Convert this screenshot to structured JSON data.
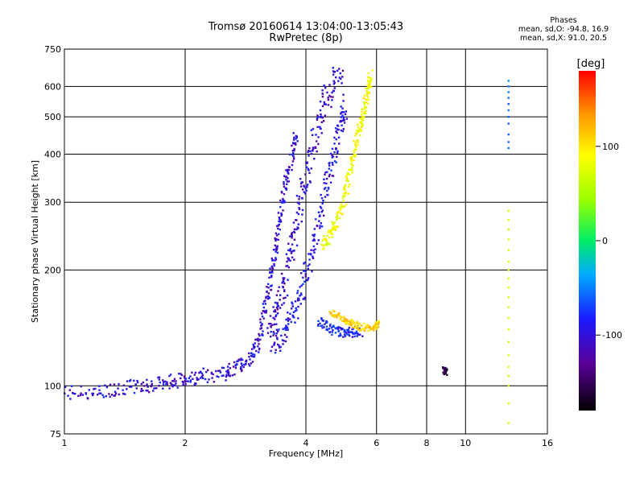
{
  "header": {
    "title_line1": "Tromsø 20160614 13:04:00-13:05:43",
    "title_line2": "RwPretec (8p)"
  },
  "phase_legend": {
    "heading": "Phases",
    "line1": "mean, sd,O: -94.8, 16.9",
    "line2": "mean, sd,X:  91.0, 20.5"
  },
  "colorbar": {
    "unit_label": "[deg]",
    "ticks": [
      "100",
      "0",
      "-100"
    ],
    "tick_values": [
      100,
      0,
      -100
    ],
    "range": [
      -180,
      180
    ]
  },
  "chart_data": {
    "type": "scatter",
    "title": "Tromsø 20160614 13:04:00-13:05:43",
    "subtitle": "RwPretec (8p)",
    "xlabel": "Frequency [MHz]",
    "ylabel": "Stationary phase Virtual Height [km]",
    "x_scale": "log",
    "y_scale": "log",
    "xlim": [
      1,
      16
    ],
    "ylim": [
      75,
      750
    ],
    "x_ticks": [
      "1",
      "2",
      "4",
      "6",
      "8",
      "10",
      "16"
    ],
    "x_tick_values": [
      1,
      2,
      4,
      6,
      8,
      10,
      16
    ],
    "y_ticks": [
      "75",
      "100",
      "200",
      "300",
      "400",
      "500",
      "600",
      "750"
    ],
    "y_tick_values": [
      75,
      100,
      200,
      300,
      400,
      500,
      600,
      750
    ],
    "grid": true,
    "color_scale": "phase [deg], -180 (black/purple) to 180 (red)",
    "series": [
      {
        "type": "trace",
        "phase": -110,
        "spread": 0.04,
        "points": [
          [
            1.0,
            96
          ],
          [
            1.2,
            96
          ],
          [
            1.4,
            99
          ],
          [
            1.6,
            100
          ],
          [
            1.8,
            102
          ],
          [
            2.0,
            104
          ],
          [
            2.2,
            106
          ],
          [
            2.5,
            108
          ],
          [
            2.7,
            112
          ],
          [
            2.9,
            118
          ],
          [
            3.05,
            130
          ],
          [
            3.15,
            155
          ],
          [
            3.25,
            185
          ],
          [
            3.35,
            220
          ],
          [
            3.45,
            270
          ],
          [
            3.55,
            330
          ],
          [
            3.7,
            400
          ],
          [
            3.8,
            450
          ]
        ]
      },
      {
        "type": "trace",
        "phase": -115,
        "spread": 0.07,
        "points": [
          [
            3.25,
            140
          ],
          [
            3.4,
            160
          ],
          [
            3.55,
            190
          ],
          [
            3.7,
            230
          ],
          [
            3.85,
            290
          ],
          [
            4.0,
            350
          ],
          [
            4.2,
            430
          ],
          [
            4.4,
            520
          ],
          [
            4.6,
            600
          ],
          [
            4.9,
            650
          ]
        ]
      },
      {
        "type": "trace",
        "phase": -105,
        "spread": 0.06,
        "points": [
          [
            3.3,
            125
          ],
          [
            3.5,
            135
          ],
          [
            3.7,
            150
          ],
          [
            3.9,
            175
          ],
          [
            4.1,
            210
          ],
          [
            4.3,
            260
          ],
          [
            4.5,
            330
          ],
          [
            4.7,
            400
          ],
          [
            4.9,
            470
          ],
          [
            5.0,
            540
          ]
        ]
      },
      {
        "type": "trace",
        "phase": -95,
        "spread": 0.03,
        "points": [
          [
            4.3,
            148
          ],
          [
            4.6,
            140
          ],
          [
            4.9,
            138
          ],
          [
            5.2,
            138
          ],
          [
            5.5,
            139
          ]
        ]
      },
      {
        "type": "trace",
        "phase": 85,
        "spread": 0.04,
        "points": [
          [
            4.4,
            230
          ],
          [
            4.6,
            245
          ],
          [
            4.8,
            270
          ],
          [
            5.0,
            310
          ],
          [
            5.15,
            360
          ],
          [
            5.3,
            420
          ],
          [
            5.45,
            470
          ],
          [
            5.6,
            520
          ],
          [
            5.75,
            600
          ],
          [
            5.8,
            640
          ]
        ]
      },
      {
        "type": "trace",
        "phase": 110,
        "spread": 0.02,
        "points": [
          [
            4.6,
            155
          ],
          [
            4.9,
            150
          ],
          [
            5.2,
            145
          ],
          [
            5.5,
            142
          ],
          [
            5.9,
            142
          ],
          [
            6.1,
            145
          ]
        ]
      },
      {
        "type": "trace",
        "phase": -150,
        "spread": 0.02,
        "points": [
          [
            8.8,
            110
          ],
          [
            9.0,
            108
          ]
        ]
      },
      {
        "type": "vertical",
        "x": 12.8,
        "phase": 70,
        "y": [
          80,
          90,
          100,
          106,
          112,
          120,
          130,
          140,
          150,
          160,
          170,
          180,
          190,
          200,
          210,
          225,
          240,
          255,
          270,
          285
        ]
      },
      {
        "type": "vertical",
        "x": 12.8,
        "phase": -60,
        "y": [
          415,
          430,
          450,
          480,
          500,
          520,
          540,
          560,
          580,
          600,
          620
        ]
      }
    ]
  }
}
